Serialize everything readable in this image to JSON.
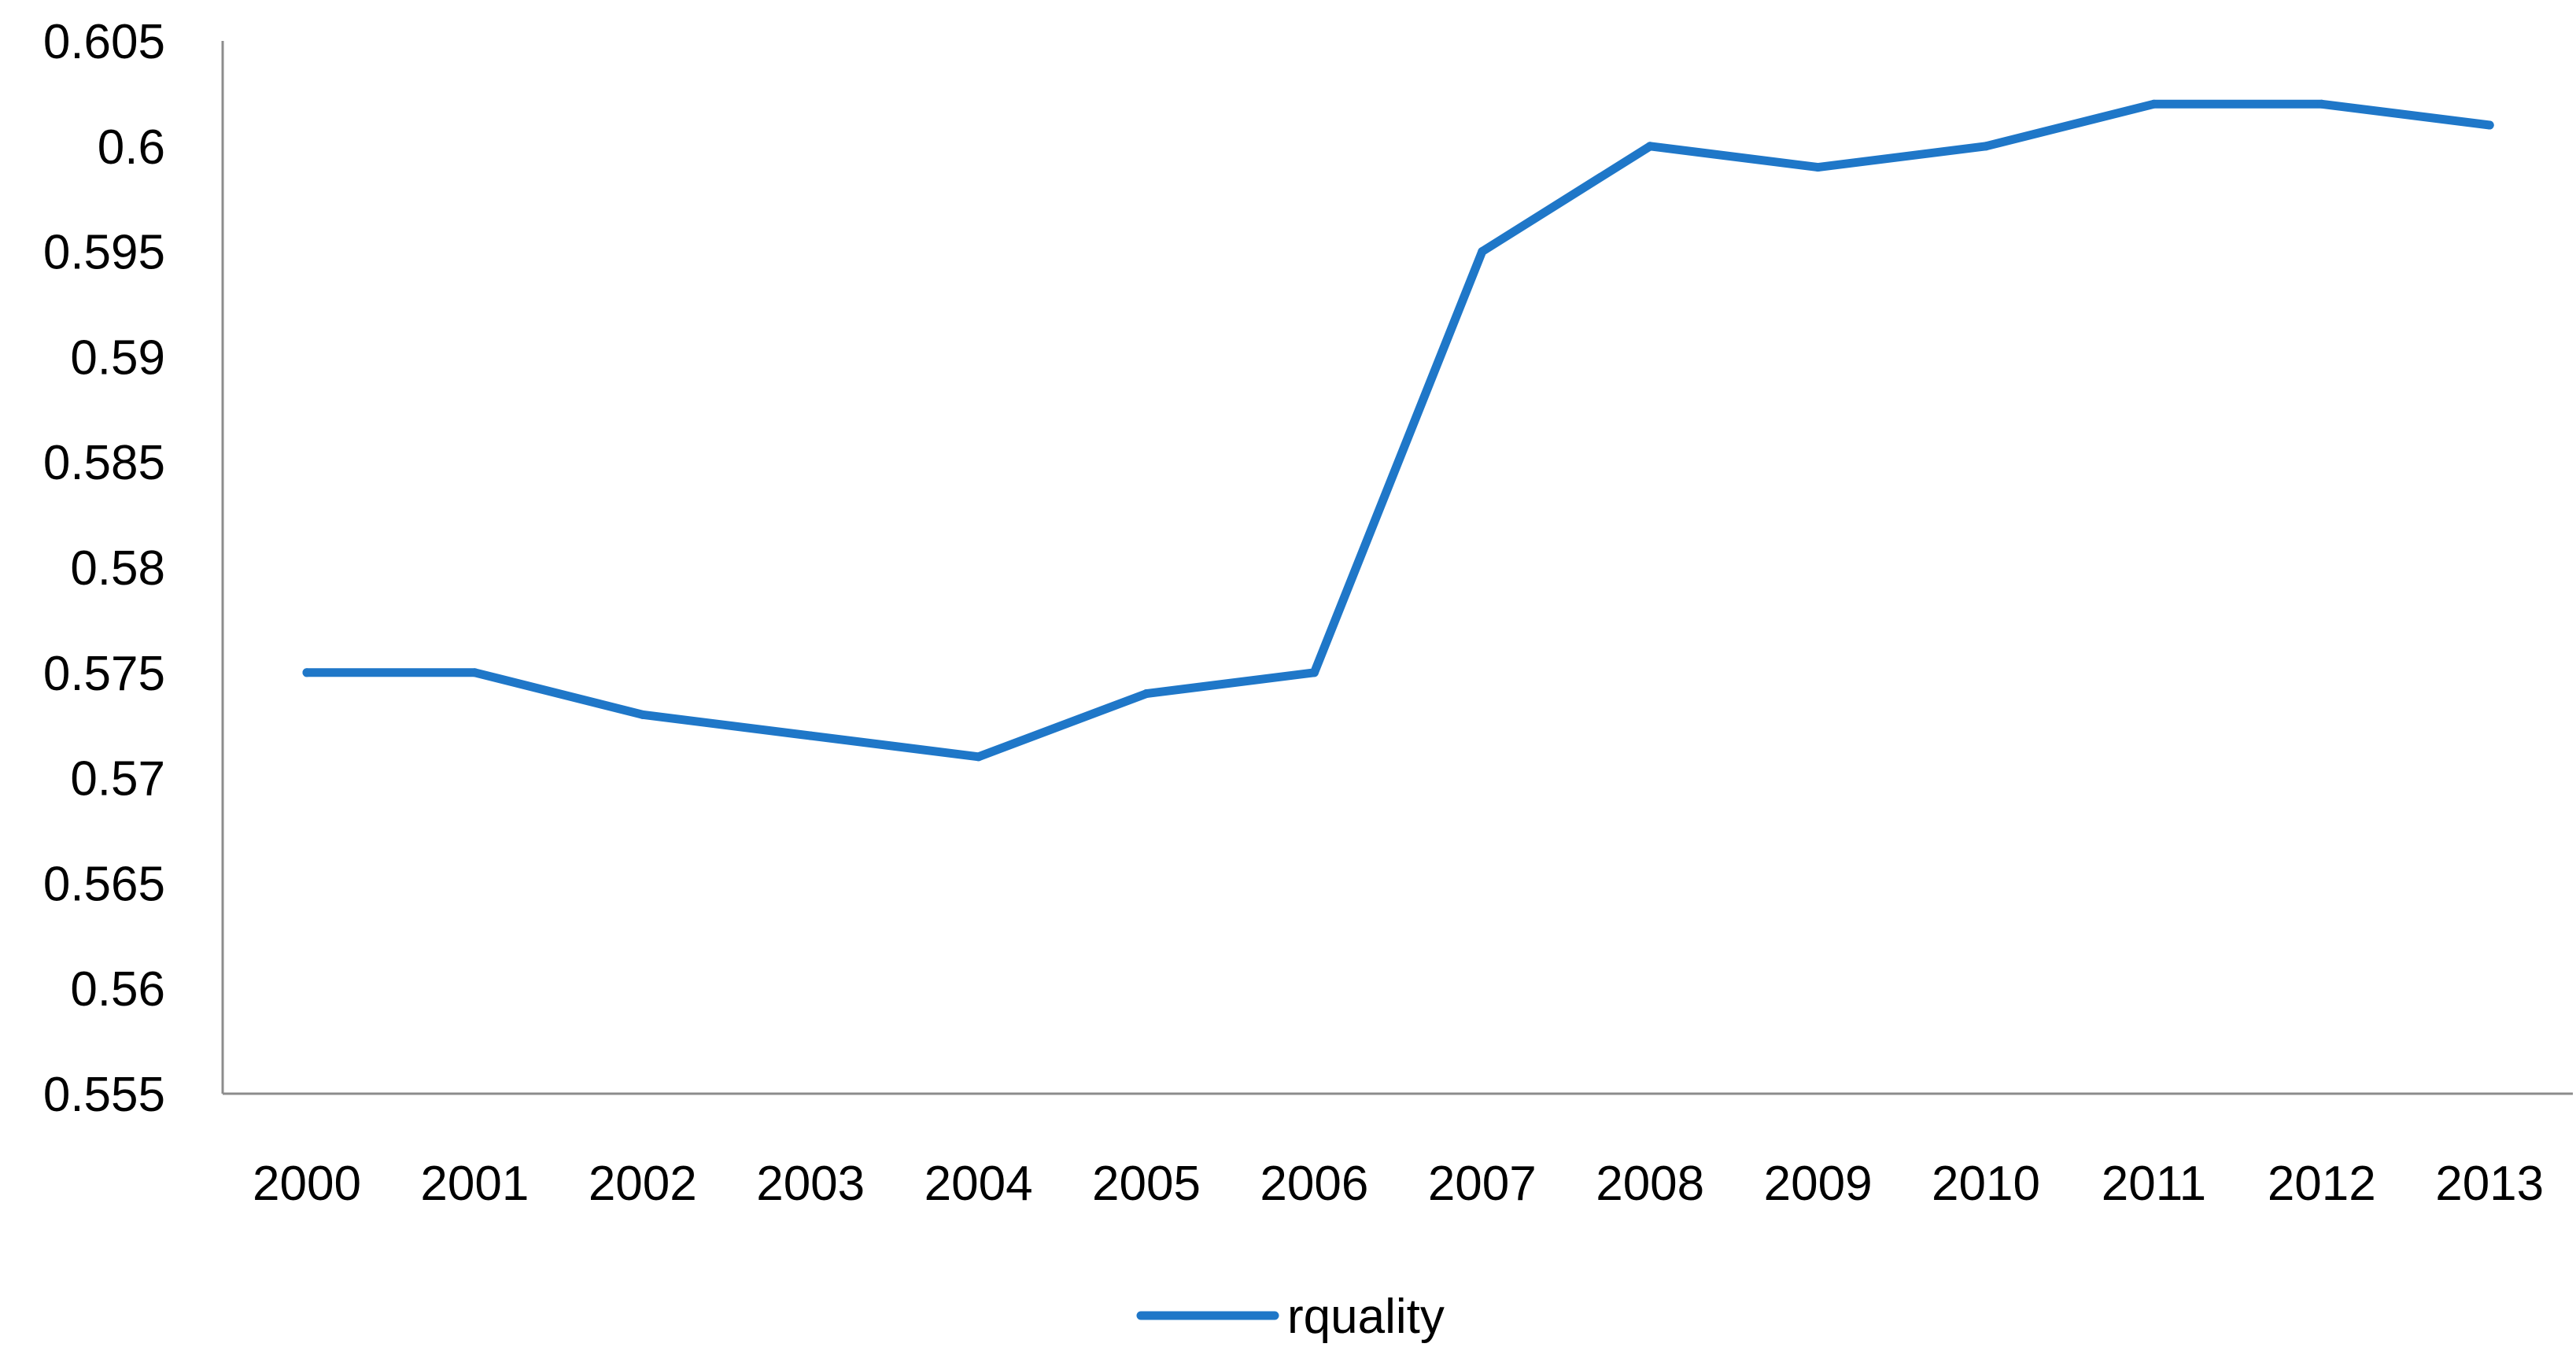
{
  "chart_data": {
    "type": "line",
    "title": "",
    "xlabel": "",
    "ylabel": "",
    "categories": [
      "2000",
      "2001",
      "2002",
      "2003",
      "2004",
      "2005",
      "2006",
      "2007",
      "2008",
      "2009",
      "2010",
      "2011",
      "2012",
      "2013"
    ],
    "series": [
      {
        "name": "rquality",
        "color": "#1F77C8",
        "values": [
          0.575,
          0.575,
          0.573,
          0.572,
          0.571,
          0.574,
          0.575,
          0.595,
          0.6,
          0.599,
          0.6,
          0.602,
          0.602,
          0.601
        ]
      }
    ],
    "ylim": [
      0.555,
      0.605
    ],
    "ytick_labels": [
      "0.555",
      "0.56",
      "0.565",
      "0.57",
      "0.575",
      "0.58",
      "0.585",
      "0.59",
      "0.595",
      "0.6",
      "0.605"
    ],
    "grid": false,
    "legend_position": "bottom-center"
  }
}
